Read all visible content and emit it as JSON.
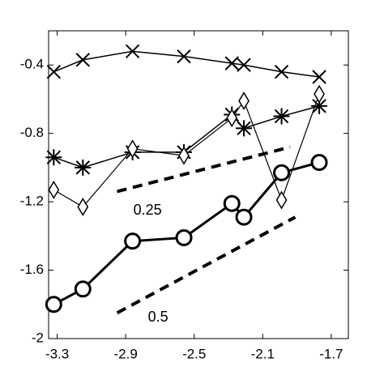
{
  "chart_data": {
    "type": "line",
    "x": [
      -3.32,
      -3.15,
      -2.86,
      -2.56,
      -2.28,
      -2.21,
      -1.99,
      -1.77
    ],
    "series": [
      {
        "color": "#000000",
        "marker": "x",
        "linewidth": 1.5,
        "values": [
          -0.44,
          -0.37,
          -0.32,
          -0.35,
          -0.39,
          -0.4,
          -0.44,
          -0.47
        ]
      },
      {
        "color": "#000000",
        "marker": "star",
        "linewidth": 1.5,
        "values": [
          -0.94,
          -1.0,
          -0.91,
          -0.91,
          -0.69,
          -0.77,
          -0.7,
          -0.64
        ]
      },
      {
        "color": "#000000",
        "marker": "diamond",
        "linewidth": 1.2,
        "values": [
          -1.13,
          -1.23,
          -0.89,
          -0.93,
          -0.71,
          -0.61,
          -1.19,
          -0.57
        ]
      },
      {
        "color": "#000000",
        "marker": "circle",
        "linewidth": 3,
        "values": [
          -1.8,
          -1.71,
          -1.43,
          -1.41,
          -1.21,
          -1.29,
          -1.03,
          -0.97
        ]
      }
    ],
    "annotations": [
      {
        "text": "0.25",
        "x": [
          -2.95,
          -1.94
        ],
        "y": [
          -1.14,
          -0.88
        ]
      },
      {
        "text": "0.5",
        "x": [
          -2.95,
          -1.91
        ],
        "y": [
          -1.85,
          -1.29
        ]
      }
    ],
    "xlim": [
      -3.35,
      -1.6
    ],
    "ylim": [
      -2,
      -0.2
    ],
    "xticks": [
      -3.3,
      -2.9,
      -2.5,
      -2.1,
      -1.7
    ],
    "yticks": [
      -2,
      -1.6,
      -1.2,
      -0.8,
      -0.4
    ],
    "grid": false
  }
}
